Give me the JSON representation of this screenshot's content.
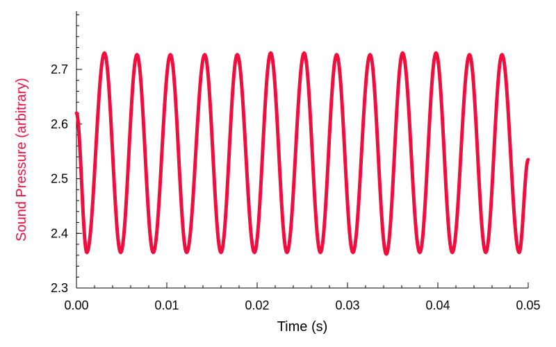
{
  "chart_data": {
    "type": "line",
    "title": "",
    "xlabel": "Time (s)",
    "ylabel": "Sound Pressure (arbitrary)",
    "xlim": [
      0,
      0.05
    ],
    "ylim": [
      2.3,
      2.8
    ],
    "x_ticks": [
      0.0,
      0.01,
      0.02,
      0.03,
      0.04,
      0.05
    ],
    "x_tick_labels": [
      "0.00",
      "0.01",
      "0.02",
      "0.03",
      "0.04",
      "0.05"
    ],
    "y_ticks": [
      2.3,
      2.4,
      2.5,
      2.6,
      2.7
    ],
    "y_tick_labels": [
      "2.3",
      "2.4",
      "2.5",
      "2.6",
      "2.7"
    ],
    "grid": false,
    "legend": "none",
    "series": [
      {
        "color": "#ee0f3e",
        "x": [
          0.0,
          0.00115,
          0.0031,
          0.0049,
          0.0067,
          0.0085,
          0.0104,
          0.0122,
          0.0142,
          0.016,
          0.0178,
          0.0197,
          0.0215,
          0.0233,
          0.0252,
          0.027,
          0.0288,
          0.0306,
          0.0325,
          0.0343,
          0.0361,
          0.038,
          0.0398,
          0.0416,
          0.0435,
          0.0453,
          0.0471,
          0.049,
          0.05
        ],
        "y": [
          2.62,
          2.365,
          2.73,
          2.365,
          2.727,
          2.365,
          2.727,
          2.365,
          2.727,
          2.365,
          2.727,
          2.365,
          2.73,
          2.365,
          2.73,
          2.365,
          2.727,
          2.365,
          2.727,
          2.362,
          2.73,
          2.365,
          2.73,
          2.365,
          2.727,
          2.365,
          2.727,
          2.365,
          2.535
        ]
      }
    ]
  }
}
